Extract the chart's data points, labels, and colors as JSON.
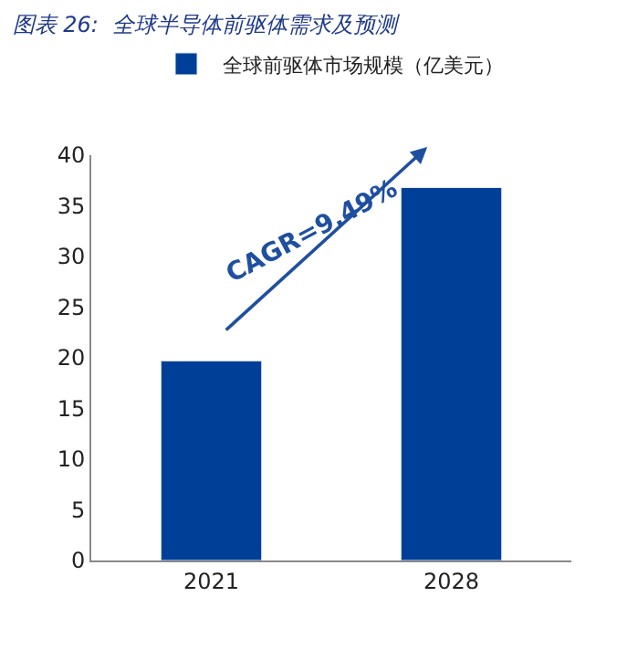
{
  "chart_data": {
    "type": "bar",
    "title": "图表 26:  全球半导体前驱体需求及预测",
    "categories": [
      "2021",
      "2028"
    ],
    "series": [
      {
        "name": "全球前驱体市场规模（亿美元）",
        "color": "#003f97",
        "values": [
          19.7,
          36.8
        ]
      }
    ],
    "ylim": [
      0,
      40
    ],
    "yticks": [
      0,
      5,
      10,
      15,
      20,
      25,
      30,
      35,
      40
    ],
    "legend": "top",
    "annotations": [
      "CAGR=9.49%"
    ]
  }
}
